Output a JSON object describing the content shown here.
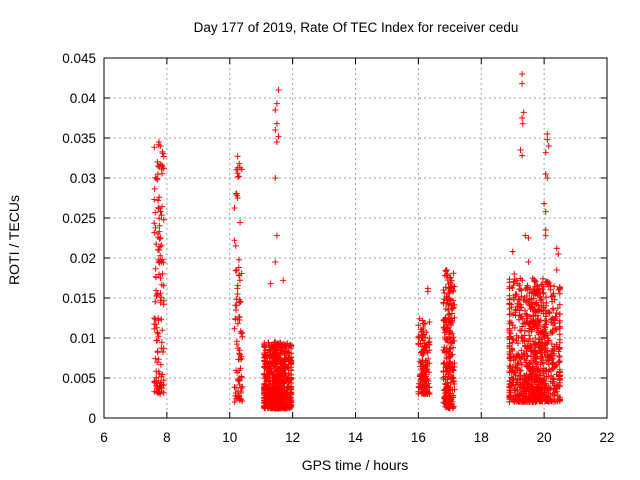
{
  "chart_data": {
    "type": "scatter",
    "title": "Day 177 of 2019, Rate Of TEC Index for receiver cedu",
    "xlabel": "GPS time / hours",
    "ylabel": "ROTI / TECUs",
    "xlim": [
      6,
      22
    ],
    "ylim": [
      0,
      0.045
    ],
    "xticks": [
      6,
      8,
      10,
      12,
      14,
      16,
      18,
      20,
      22
    ],
    "xtick_labels": [
      "6",
      "8",
      "10",
      "12",
      "14",
      "16",
      "18",
      "20",
      "22"
    ],
    "yticks": [
      0,
      0.005,
      0.01,
      0.015,
      0.02,
      0.025,
      0.03,
      0.035,
      0.04,
      0.045
    ],
    "ytick_labels": [
      "0",
      "0.005",
      "0.01",
      "0.015",
      "0.02",
      "0.025",
      "0.03",
      "0.035",
      "0.04",
      "0.045"
    ],
    "grid": true,
    "marker": "+",
    "marker_color": "#ff0000",
    "clusters": [
      {
        "x_range": [
          7.6,
          7.9
        ],
        "y_range": [
          0.003,
          0.0345
        ],
        "count": 120,
        "highlights": [
          [
            7.75,
            0.0345
          ],
          [
            7.7,
            0.032
          ],
          [
            7.72,
            0.0315
          ],
          [
            7.7,
            0.0298
          ],
          [
            7.72,
            0.0272
          ],
          [
            7.75,
            0.0262
          ],
          [
            7.72,
            0.023
          ],
          [
            7.8,
            0.0225
          ],
          [
            7.75,
            0.021
          ],
          [
            7.85,
            0.0198
          ],
          [
            7.8,
            0.0175
          ]
        ]
      },
      {
        "x_range": [
          10.15,
          10.4
        ],
        "y_range": [
          0.002,
          0.0327
        ],
        "count": 80,
        "highlights": [
          [
            10.25,
            0.0327
          ],
          [
            10.3,
            0.0318
          ],
          [
            10.25,
            0.0306
          ],
          [
            10.2,
            0.028
          ],
          [
            10.25,
            0.0275
          ],
          [
            10.25,
            0.0155
          ],
          [
            10.3,
            0.0148
          ],
          [
            10.2,
            0.0135
          ]
        ]
      },
      {
        "x_range": [
          11.1,
          11.95
        ],
        "y_range": [
          0.0012,
          0.0095
        ],
        "count": 700,
        "highlights": [
          [
            11.55,
            0.041
          ],
          [
            11.5,
            0.0393
          ],
          [
            11.45,
            0.0385
          ],
          [
            11.5,
            0.0368
          ],
          [
            11.45,
            0.036
          ],
          [
            11.55,
            0.0352
          ],
          [
            11.5,
            0.0345
          ],
          [
            11.45,
            0.03
          ],
          [
            11.5,
            0.0228
          ],
          [
            11.45,
            0.0195
          ],
          [
            11.7,
            0.0172
          ],
          [
            11.3,
            0.0168
          ]
        ]
      },
      {
        "x_range": [
          16.0,
          16.35
        ],
        "y_range": [
          0.003,
          0.0125
        ],
        "count": 150,
        "highlights": [
          [
            16.3,
            0.0162
          ],
          [
            16.3,
            0.0158
          ],
          [
            16.35,
            0.012
          ]
        ]
      },
      {
        "x_range": [
          16.8,
          17.15
        ],
        "y_range": [
          0.0012,
          0.0185
        ],
        "count": 260,
        "highlights": [
          [
            16.9,
            0.0185
          ],
          [
            17.0,
            0.0175
          ],
          [
            17.05,
            0.0015
          ]
        ]
      },
      {
        "x_range": [
          18.9,
          20.5
        ],
        "y_range": [
          0.002,
          0.0175
        ],
        "count": 900,
        "highlights": [
          [
            19.3,
            0.043
          ],
          [
            19.3,
            0.0418
          ],
          [
            19.35,
            0.0382
          ],
          [
            19.3,
            0.0375
          ],
          [
            19.32,
            0.0368
          ],
          [
            19.25,
            0.0335
          ],
          [
            19.3,
            0.0328
          ],
          [
            20.1,
            0.0355
          ],
          [
            20.1,
            0.0348
          ],
          [
            20.15,
            0.034
          ],
          [
            20.05,
            0.0332
          ],
          [
            20.05,
            0.0305
          ],
          [
            20.1,
            0.03
          ],
          [
            20.0,
            0.0268
          ],
          [
            20.05,
            0.0258
          ],
          [
            20.05,
            0.0235
          ],
          [
            20.05,
            0.0228
          ],
          [
            19.4,
            0.0228
          ],
          [
            19.5,
            0.0225
          ],
          [
            20.4,
            0.0212
          ],
          [
            20.45,
            0.0205
          ],
          [
            19.0,
            0.0208
          ],
          [
            19.5,
            0.0195
          ],
          [
            20.4,
            0.0185
          ],
          [
            19.05,
            0.018
          ]
        ]
      }
    ]
  }
}
